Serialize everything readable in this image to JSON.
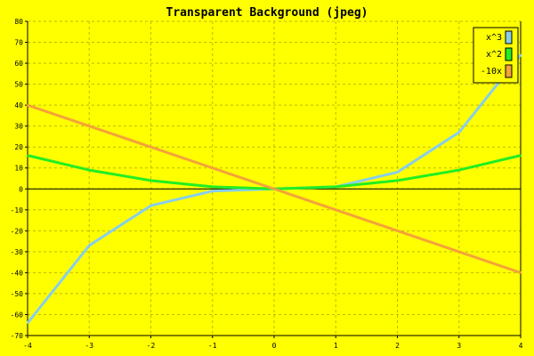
{
  "chart_data": {
    "type": "line",
    "title": "Transparent Background (jpeg)",
    "xlabel": "",
    "ylabel": "",
    "xlim": [
      -4,
      4
    ],
    "ylim": [
      -70,
      80
    ],
    "xticks": [
      "-4",
      "-3",
      "-2",
      "-1",
      "0",
      "1",
      "2",
      "3",
      "4"
    ],
    "yticks": [
      "80",
      "70",
      "60",
      "50",
      "40",
      "30",
      "20",
      "10",
      "0",
      "-10",
      "-20",
      "-30",
      "-40",
      "-50",
      "-60",
      "-70"
    ],
    "grid": true,
    "legend_position": "top-right",
    "x": [
      -4,
      -3,
      -2,
      -1,
      0,
      1,
      2,
      3,
      4
    ],
    "series": [
      {
        "name": "x^3",
        "color": "#87ceeb",
        "values": [
          -64,
          -27,
          -8,
          -1,
          0,
          1,
          8,
          27,
          64
        ]
      },
      {
        "name": "x^2",
        "color": "#22ee22",
        "values": [
          16,
          9,
          4,
          1,
          0,
          1,
          4,
          9,
          16
        ]
      },
      {
        "name": "-10x",
        "color": "#f4a23a",
        "values": [
          40,
          30,
          20,
          10,
          0,
          -10,
          -20,
          -30,
          -40
        ]
      }
    ],
    "colors": {
      "background": "#ffff00",
      "grid": "#bbbb00",
      "axis": "#000000"
    }
  }
}
